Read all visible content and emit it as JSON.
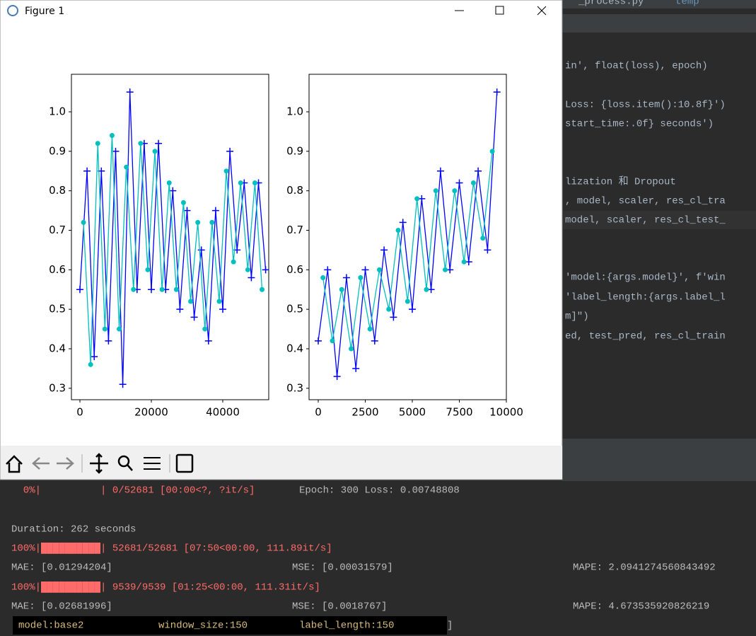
{
  "window": {
    "title": "Figure 1"
  },
  "editor": {
    "tabs": [
      "_process.py",
      "temp"
    ],
    "code_lines": [
      "in', float(loss), epoch)",
      "Loss: {loss.item():10.8f}')",
      "start_time:.0f} seconds')",
      "lization 和 Dropout",
      ", model, scaler, res_cl_tra",
      "model, scaler, res_cl_test_",
      "'model:{args.model}', f'win",
      "'label_length:{args.label_l",
      "m]\")",
      "ed, test_pred, res_cl_train"
    ]
  },
  "console": {
    "epoch_progress": "  0%|          | 0/52681 [00:00<?, ?it/s]",
    "epoch_msg": "Epoch: 300 Loss: 0.00748808",
    "duration": "Duration: 262 seconds",
    "runs": [
      {
        "progress": "100%|██████████| 52681/52681 [07:50<00:00, 111.89it/s]",
        "mae": "MAE: [0.01294204]",
        "mse": "MSE: [0.00031579]",
        "mape": "MAPE: 2.0941274560843492"
      },
      {
        "progress": "100%|██████████| 9539/9539 [01:25<00:00, 111.31it/s]",
        "mae": "MAE: [0.02681996]",
        "mse": "MSE: [0.0018767]",
        "mape": "MAPE: 4.673535920826219"
      }
    ],
    "tags": [
      "model:base2",
      "window_size:150",
      "label_length:150"
    ],
    "tail": "]"
  },
  "chart_data": [
    {
      "type": "line",
      "xlim": [
        -2376,
        52871
      ],
      "ylim": [
        0.271,
        1.095
      ],
      "xticks": [
        0,
        20000,
        40000
      ],
      "yticks": [
        0.3,
        0.4,
        0.5,
        0.6,
        0.7,
        0.8,
        0.9,
        {
          "value": 1,
          "label": "1.0"
        }
      ],
      "series": [
        {
          "color": "#0000ff",
          "marker": "+",
          "x": [
            0,
            2000,
            4000,
            6000,
            8000,
            10000,
            12000,
            14000,
            16000,
            18000,
            20000,
            22000,
            24000,
            26000,
            28000,
            30000,
            32000,
            34000,
            36000,
            38000,
            40000,
            42000,
            44000,
            46000,
            48000,
            50000,
            52000
          ],
          "values": [
            0.55,
            0.85,
            0.38,
            0.85,
            0.42,
            0.9,
            0.31,
            1.05,
            0.55,
            0.92,
            0.55,
            0.92,
            0.55,
            0.8,
            0.5,
            0.75,
            0.48,
            0.65,
            0.42,
            0.75,
            0.5,
            0.9,
            0.65,
            0.82,
            0.58,
            0.82,
            0.6
          ]
        },
        {
          "color": "#00bfbf",
          "marker": "o",
          "x": [
            1000,
            3000,
            5000,
            7000,
            9000,
            11000,
            13000,
            15000,
            17000,
            19000,
            21000,
            23000,
            25000,
            27000,
            29000,
            31000,
            33000,
            35000,
            37000,
            39000,
            41000,
            43000,
            45000,
            47000,
            49000,
            51000
          ],
          "values": [
            0.72,
            0.36,
            0.92,
            0.45,
            0.94,
            0.45,
            0.86,
            0.55,
            0.92,
            0.6,
            0.9,
            0.55,
            0.82,
            0.55,
            0.77,
            0.52,
            0.72,
            0.45,
            0.72,
            0.52,
            0.85,
            0.62,
            0.82,
            0.6,
            0.82,
            0.55
          ]
        }
      ]
    },
    {
      "type": "line",
      "xlim": [
        -489,
        10000
      ],
      "ylim": [
        0.271,
        1.095
      ],
      "xticks": [
        0,
        2500,
        5000,
        7500,
        10000
      ],
      "yticks": [
        0.3,
        0.4,
        0.5,
        0.6,
        0.7,
        0.8,
        0.9,
        {
          "value": 1,
          "label": "1.0"
        }
      ],
      "series": [
        {
          "color": "#0000ff",
          "marker": "+",
          "x": [
            0,
            500,
            1000,
            1500,
            2000,
            2500,
            3000,
            3500,
            4000,
            4500,
            5000,
            5500,
            6000,
            6500,
            7000,
            7500,
            8000,
            8500,
            9000,
            9500
          ],
          "values": [
            0.42,
            0.6,
            0.33,
            0.58,
            0.35,
            0.6,
            0.42,
            0.65,
            0.48,
            0.72,
            0.5,
            0.78,
            0.55,
            0.85,
            0.6,
            0.82,
            0.62,
            0.85,
            0.65,
            1.05
          ]
        },
        {
          "color": "#00bfbf",
          "marker": "o",
          "x": [
            250,
            750,
            1250,
            1750,
            2250,
            2750,
            3250,
            3750,
            4250,
            4750,
            5250,
            5750,
            6250,
            6750,
            7250,
            7750,
            8250,
            8750,
            9250
          ],
          "values": [
            0.58,
            0.42,
            0.55,
            0.4,
            0.58,
            0.45,
            0.6,
            0.5,
            0.7,
            0.52,
            0.78,
            0.55,
            0.8,
            0.6,
            0.8,
            0.62,
            0.82,
            0.68,
            0.9
          ]
        }
      ]
    }
  ]
}
